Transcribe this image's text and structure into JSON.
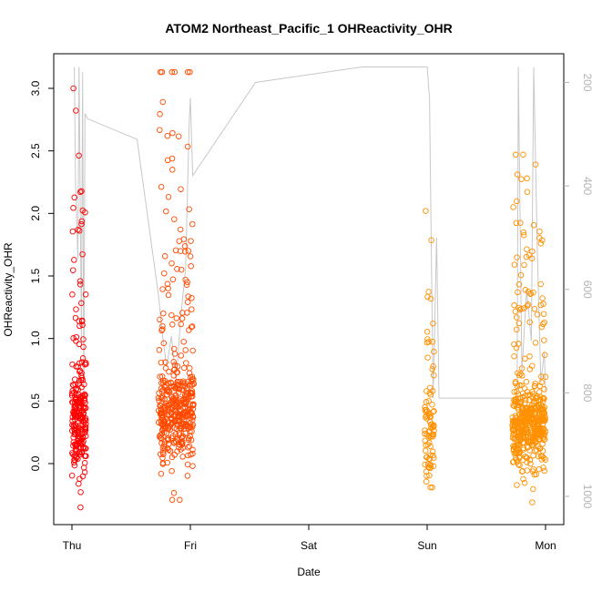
{
  "chart_data": {
    "type": "scatter",
    "title": "ATOM2 Northeast_Pacific_1 OHReactivity_OHR",
    "xlabel": "Date",
    "ylabel": "OHReactivity_OHR",
    "x_ticks": [
      "Thu",
      "Fri",
      "Sat",
      "Sun",
      "Mon"
    ],
    "xlim": [
      0,
      4.08
    ],
    "ylim": [
      -0.39,
      3.26
    ],
    "y_ticks": [
      0.0,
      0.5,
      1.0,
      1.5,
      2.0,
      2.5,
      3.0
    ],
    "y2_ticks": [
      200,
      400,
      600,
      800,
      1000
    ],
    "y2lim": [
      1025,
      170
    ],
    "y2_inverted": true,
    "grid": false,
    "point_colors": {
      "early": "#ff0000",
      "mid": "#ff4a00",
      "late": "#ff9000"
    },
    "altitude_line_color": "#c8c8c8",
    "axis_color": "#000000",
    "right_axis_color": "#b3b3b3",
    "clusters": [
      {
        "name": "Thu",
        "x_start": 0.0,
        "x_end": 0.12,
        "y_center": 0.32,
        "y_spread": 0.38,
        "y_max": 3.0,
        "y_min": -0.35,
        "count": 230,
        "color": "early"
      },
      {
        "name": "Fri",
        "x_start": 0.73,
        "x_end": 1.03,
        "y_center": 0.38,
        "y_spread": 0.33,
        "y_max": 3.13,
        "y_min": -0.29,
        "count": 420,
        "color": "mid"
      },
      {
        "name": "Sun",
        "x_start": 2.98,
        "x_end": 3.06,
        "y_center": 0.22,
        "y_spread": 0.35,
        "y_max": 2.02,
        "y_min": -0.19,
        "count": 85,
        "color": "late"
      },
      {
        "name": "Mon",
        "x_start": 3.72,
        "x_end": 4.0,
        "y_center": 0.28,
        "y_spread": 0.28,
        "y_max": 2.47,
        "y_min": -0.31,
        "count": 470,
        "color": "late"
      }
    ],
    "altitude_track": [
      [
        0.02,
        170
      ],
      [
        0.03,
        390
      ],
      [
        0.05,
        540
      ],
      [
        0.06,
        170
      ],
      [
        0.08,
        700
      ],
      [
        0.09,
        180
      ],
      [
        0.1,
        820
      ],
      [
        0.11,
        260
      ],
      [
        0.13,
        270
      ],
      [
        0.55,
        310
      ],
      [
        0.73,
        610
      ],
      [
        0.76,
        680
      ],
      [
        0.8,
        750
      ],
      [
        0.84,
        690
      ],
      [
        0.88,
        780
      ],
      [
        0.92,
        650
      ],
      [
        0.96,
        560
      ],
      [
        0.99,
        280
      ],
      [
        1.0,
        230
      ],
      [
        1.02,
        380
      ],
      [
        1.55,
        200
      ],
      [
        2.45,
        170
      ],
      [
        3.0,
        170
      ],
      [
        3.02,
        230
      ],
      [
        3.05,
        810
      ],
      [
        3.08,
        500
      ],
      [
        3.1,
        810
      ],
      [
        3.6,
        810
      ],
      [
        3.76,
        810
      ],
      [
        3.77,
        170
      ],
      [
        3.8,
        760
      ],
      [
        3.84,
        600
      ],
      [
        3.88,
        700
      ],
      [
        3.9,
        170
      ],
      [
        3.93,
        520
      ],
      [
        3.96,
        780
      ],
      [
        3.99,
        720
      ],
      [
        4.0,
        800
      ]
    ]
  }
}
